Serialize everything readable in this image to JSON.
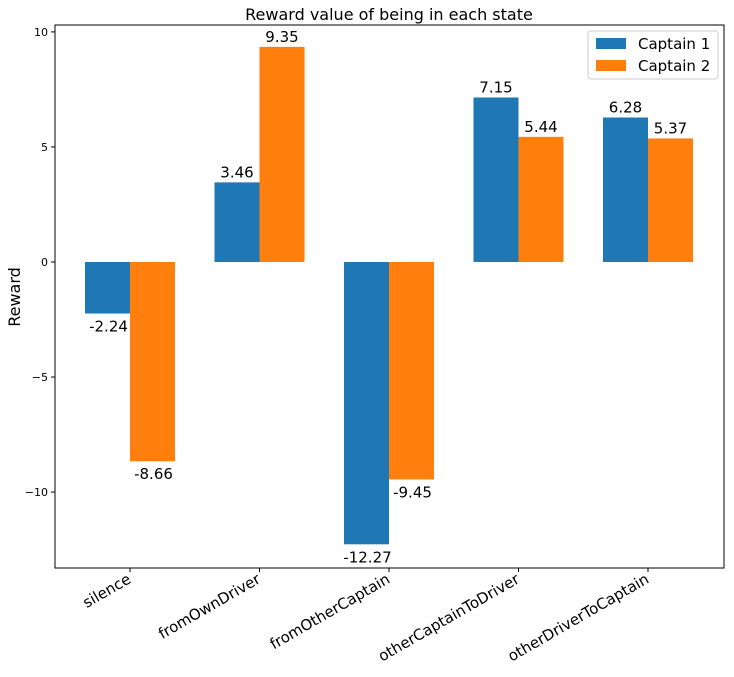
{
  "chart_data": {
    "type": "bar",
    "title": "Reward value of being in each state",
    "xlabel": "",
    "ylabel": "Reward",
    "categories": [
      "silence",
      "fromOwnDriver",
      "fromOtherCaptain",
      "otherCaptainToDriver",
      "otherDriverToCaptain"
    ],
    "series": [
      {
        "name": "Captain 1",
        "values": [
          -2.24,
          3.46,
          -12.27,
          7.15,
          6.28
        ],
        "labels": [
          "-2.24",
          "3.46",
          "-12.27",
          "7.15",
          "6.28"
        ],
        "color": "#1f77b4"
      },
      {
        "name": "Captain 2",
        "values": [
          -8.66,
          9.35,
          -9.45,
          5.44,
          5.37
        ],
        "labels": [
          "-8.66",
          "9.35",
          "-9.45",
          "5.44",
          "5.37"
        ],
        "color": "#ff7f0e"
      }
    ],
    "ylim": [
      -13.3,
      10.3
    ],
    "yticks": [
      -10,
      -5,
      0,
      5,
      10
    ],
    "ytick_labels": [
      "−10",
      "−5",
      "0",
      "5",
      "10"
    ],
    "legend_position": "top-right",
    "grid": false
  }
}
